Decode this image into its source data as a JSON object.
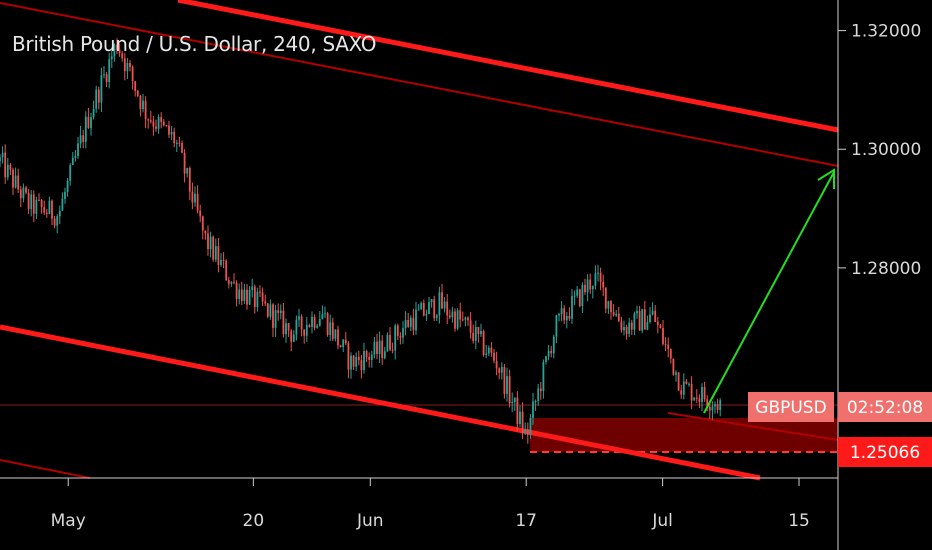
{
  "chart_data": {
    "type": "candlestick",
    "title": "British Pound / U.S. Dollar, 240, SAXO",
    "symbol": "GBPUSD",
    "countdown": "02:52:08",
    "price_tag": "1.25066",
    "y_ticks": [
      "1.32000",
      "1.30000",
      "1.28000"
    ],
    "x_ticks": [
      "May",
      "20",
      "Jun",
      "17",
      "Jul",
      "15"
    ],
    "ylim": [
      1.2466,
      1.3228
    ],
    "price_series": [
      {
        "date": "2019-04-24",
        "price": 1.298
      },
      {
        "date": "2019-04-27",
        "price": 1.2905
      },
      {
        "date": "2019-04-30",
        "price": 1.289
      },
      {
        "date": "2019-05-03",
        "price": 1.305
      },
      {
        "date": "2019-05-06",
        "price": 1.318
      },
      {
        "date": "2019-05-09",
        "price": 1.306
      },
      {
        "date": "2019-05-12",
        "price": 1.3015
      },
      {
        "date": "2019-05-15",
        "price": 1.285
      },
      {
        "date": "2019-05-18",
        "price": 1.277
      },
      {
        "date": "2019-05-21",
        "price": 1.2735
      },
      {
        "date": "2019-05-24",
        "price": 1.269
      },
      {
        "date": "2019-05-27",
        "price": 1.2725
      },
      {
        "date": "2019-05-30",
        "price": 1.264
      },
      {
        "date": "2019-06-02",
        "price": 1.266
      },
      {
        "date": "2019-06-05",
        "price": 1.271
      },
      {
        "date": "2019-06-08",
        "price": 1.274
      },
      {
        "date": "2019-06-11",
        "price": 1.27
      },
      {
        "date": "2019-06-14",
        "price": 1.264
      },
      {
        "date": "2019-06-17",
        "price": 1.2515
      },
      {
        "date": "2019-06-20",
        "price": 1.27
      },
      {
        "date": "2019-06-24",
        "price": 1.2785
      },
      {
        "date": "2019-06-27",
        "price": 1.27
      },
      {
        "date": "2019-06-30",
        "price": 1.272
      },
      {
        "date": "2019-07-03",
        "price": 1.26
      },
      {
        "date": "2019-07-07",
        "price": 1.257
      }
    ],
    "colors": {
      "up": "#26a69a",
      "down": "#ef5350",
      "channel": "#ff1a1a",
      "arrow": "#22dd22",
      "tag_symbol": "#f0706d",
      "tag_price": "#ff1a1a"
    }
  }
}
